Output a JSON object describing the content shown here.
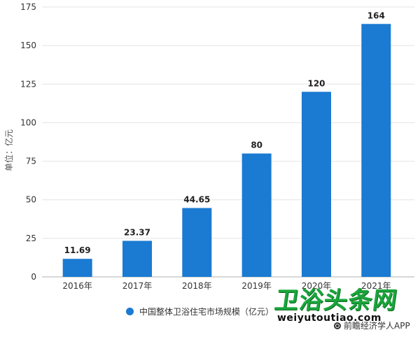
{
  "chart_data": {
    "type": "bar",
    "categories": [
      "2016年",
      "2017年",
      "2018年",
      "2019年",
      "2020年",
      "2021年"
    ],
    "series": [
      {
        "name": "中国整体卫浴住宅市场规模（亿元）",
        "values": [
          11.69,
          23.37,
          44.65,
          80,
          120,
          164
        ]
      }
    ],
    "data_labels": [
      "11.69",
      "23.37",
      "44.65",
      "80",
      "120",
      "164"
    ],
    "ylabel": "单位：亿元",
    "ylim": [
      0,
      175
    ],
    "yticks": [
      0,
      25,
      50,
      75,
      100,
      125,
      150,
      175
    ],
    "grid": true,
    "legend_position": "bottom",
    "bar_color": "#1b7ad1"
  },
  "legend": {
    "label": "中国整体卫浴住宅市场规模（亿元）"
  },
  "source": {
    "label": "前瞻经济学人APP"
  },
  "watermark": {
    "logo": "卫浴头条网",
    "url": "weiyutoutiao.com"
  }
}
